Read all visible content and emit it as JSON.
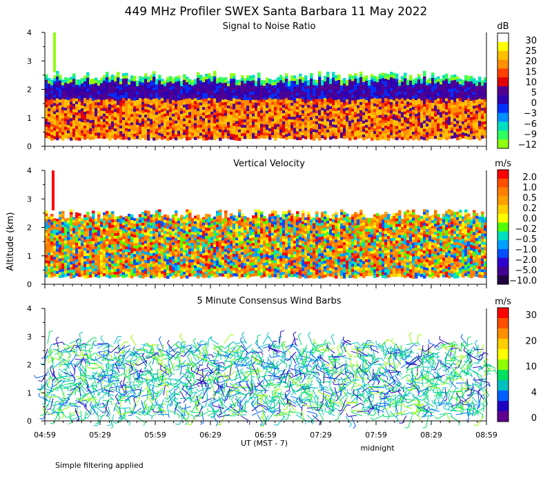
{
  "figure": {
    "title": "449 MHz Profiler SWEX Santa Barbara 11 May 2022",
    "ylabel": "Altitude (km)",
    "xlabel": "UT  (MST - 7)",
    "midnight_label": "midnight",
    "footnote": "Simple filtering applied"
  },
  "chart_data": [
    {
      "type": "heatmap",
      "title": "Signal to Noise Ratio",
      "colorbar_unit": "dB",
      "colorbar_ticks": [
        "30",
        "25",
        "20",
        "15",
        "10",
        "5",
        "0",
        "−3",
        "−6",
        "−9",
        "−12"
      ],
      "colorbar_colors": [
        "#ffffff",
        "#ffff00",
        "#ffc000",
        "#ff9000",
        "#ff4000",
        "#e00000",
        "#500090",
        "#3000b0",
        "#0030ff",
        "#0090ff",
        "#00e0c0",
        "#30ff60",
        "#90ff10"
      ],
      "x_ticks": [
        "04:59",
        "05:29",
        "05:59",
        "06:29",
        "06:59",
        "07:29",
        "07:59",
        "08:29",
        "08:59"
      ],
      "y_ticks": [
        "0",
        "1",
        "2",
        "3",
        "4"
      ],
      "ylim": [
        0,
        4
      ],
      "data_altitude_range_km": [
        0.3,
        2.5
      ],
      "typical_values_db": {
        "below_1.7km": 15,
        "1.7_to_2.2km": 5,
        "top_edge": -9
      }
    },
    {
      "type": "heatmap",
      "title": "Vertical Velocity",
      "colorbar_unit": "m/s",
      "colorbar_ticks": [
        "2.0",
        "1.0",
        "0.5",
        "0.2",
        "0.0",
        "−0.2",
        "−0.5",
        "−1.0",
        "−2.0",
        "−5.0",
        "−10.0"
      ],
      "colorbar_colors": [
        "#ff0000",
        "#ff5000",
        "#ff8000",
        "#ffa000",
        "#ffd000",
        "#ffff00",
        "#50ff00",
        "#00e0c0",
        "#00a0ff",
        "#0050ff",
        "#3000d0",
        "#400090",
        "#200040"
      ],
      "x_ticks": [
        "04:59",
        "05:29",
        "05:59",
        "06:29",
        "06:59",
        "07:29",
        "07:59",
        "08:29",
        "08:59"
      ],
      "y_ticks": [
        "0",
        "1",
        "2",
        "3",
        "4"
      ],
      "ylim": [
        0,
        4
      ],
      "data_altitude_range_km": [
        0.3,
        2.5
      ],
      "typical_value_ms": 0.5
    },
    {
      "type": "scatter",
      "title": "5 Minute Consensus Wind Barbs",
      "colorbar_unit": "m/s",
      "colorbar_ticks": [
        "30",
        "20",
        "10",
        "4",
        "0"
      ],
      "colorbar_colors": [
        "#ff0000",
        "#ff5000",
        "#ff9000",
        "#ffd000",
        "#ffff00",
        "#90ff00",
        "#00e060",
        "#00c0c0",
        "#0060ff",
        "#2000c0",
        "#600090"
      ],
      "x_ticks": [
        "04:59",
        "05:29",
        "05:59",
        "06:29",
        "06:59",
        "07:29",
        "07:59",
        "08:29",
        "08:59"
      ],
      "y_ticks": [
        "0",
        "1",
        "2",
        "3",
        "4"
      ],
      "ylim": [
        0,
        4
      ],
      "data_altitude_range_km": [
        0.2,
        2.8
      ],
      "typical_speed_ms": 8
    }
  ]
}
